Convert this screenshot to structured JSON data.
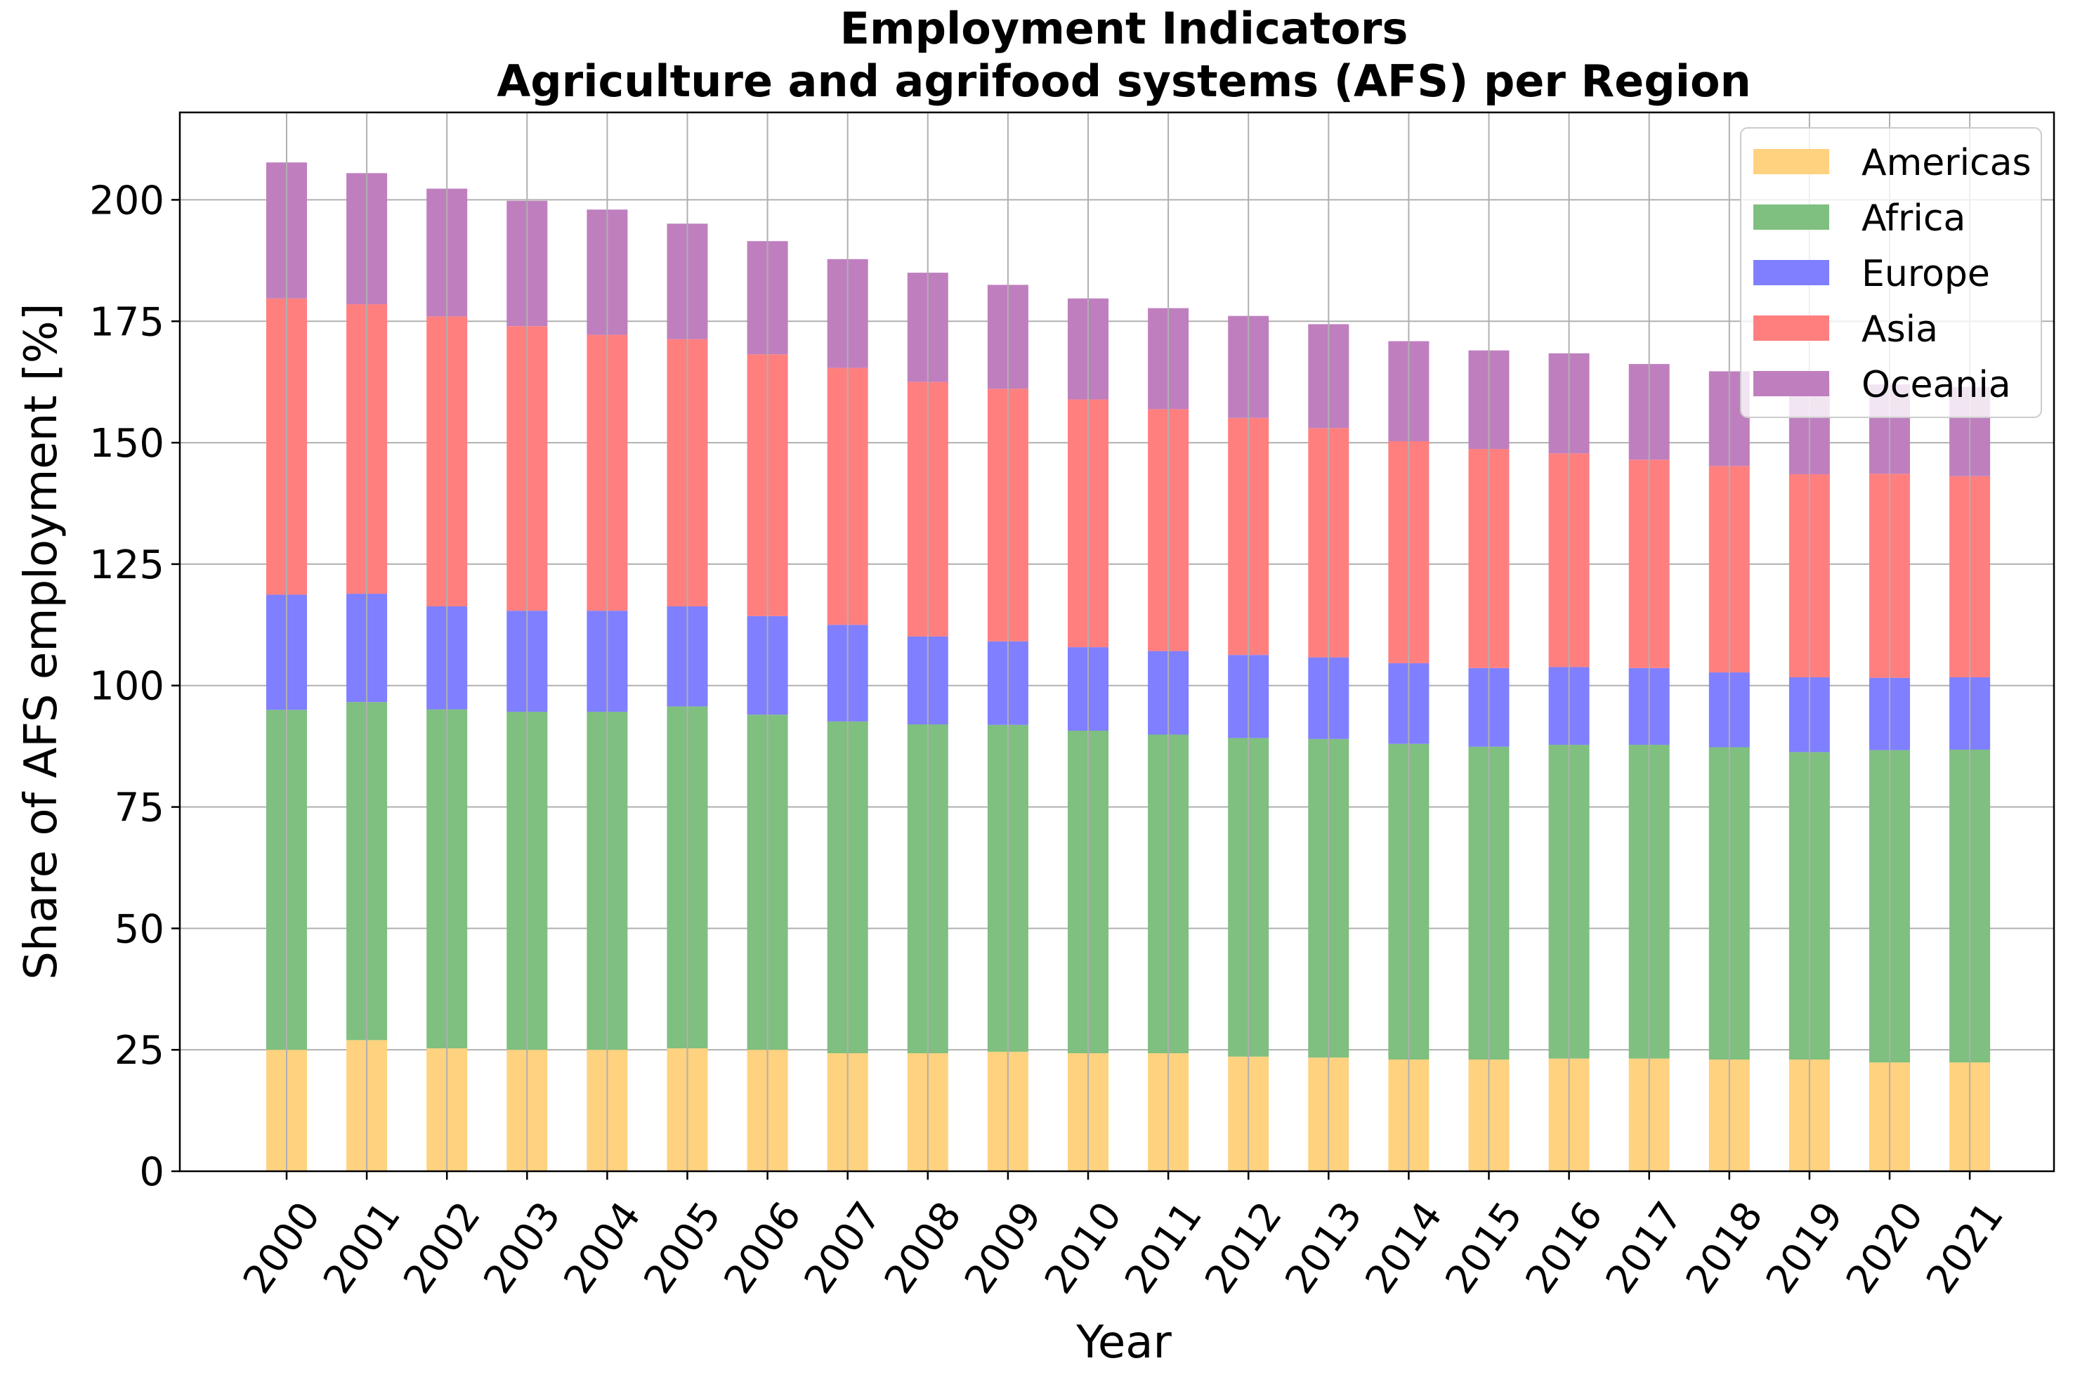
{
  "chart_data": {
    "type": "bar",
    "stacked": true,
    "title": "Employment Indicators",
    "subtitle": "Agriculture and agrifood systems (AFS) per Region",
    "xlabel": "Year",
    "ylabel": "Share of AFS employment [%]",
    "ylim": [
      0,
      218
    ],
    "yticks": [
      0,
      25,
      50,
      75,
      100,
      125,
      150,
      175,
      200
    ],
    "grid": true,
    "legend_position": "top-right",
    "categories": [
      "2000",
      "2001",
      "2002",
      "2003",
      "2004",
      "2005",
      "2006",
      "2007",
      "2008",
      "2009",
      "2010",
      "2011",
      "2012",
      "2013",
      "2014",
      "2015",
      "2016",
      "2017",
      "2018",
      "2019",
      "2020",
      "2021"
    ],
    "series": [
      {
        "name": "Americas",
        "color": "#FFD27F",
        "values": [
          25.0,
          27.0,
          25.3,
          25.0,
          25.0,
          25.3,
          25.0,
          24.3,
          24.3,
          24.6,
          24.3,
          24.3,
          23.6,
          23.4,
          23.0,
          23.0,
          23.2,
          23.2,
          23.0,
          23.0,
          22.4,
          22.4
        ]
      },
      {
        "name": "Africa",
        "color": "#7FBF7F",
        "values": [
          70.0,
          69.6,
          69.8,
          69.6,
          69.6,
          70.4,
          69.0,
          68.3,
          67.7,
          67.3,
          66.4,
          65.6,
          65.6,
          65.6,
          65.0,
          64.4,
          64.6,
          64.6,
          64.3,
          63.3,
          64.3,
          64.4
        ]
      },
      {
        "name": "Europe",
        "color": "#7F7FFF",
        "values": [
          23.7,
          22.3,
          21.2,
          20.8,
          20.8,
          20.6,
          20.3,
          19.9,
          18.1,
          17.2,
          17.2,
          17.2,
          17.1,
          16.8,
          16.6,
          16.2,
          16.0,
          15.8,
          15.4,
          15.4,
          14.9,
          14.9
        ]
      },
      {
        "name": "Asia",
        "color": "#FF7F7F",
        "values": [
          61.0,
          59.6,
          59.7,
          58.6,
          56.8,
          55.0,
          53.9,
          52.9,
          52.4,
          52.0,
          51.0,
          49.8,
          48.8,
          47.2,
          45.7,
          45.1,
          44.0,
          42.9,
          42.5,
          41.8,
          42.0,
          41.4
        ]
      },
      {
        "name": "Oceania",
        "color": "#BF7FBF",
        "values": [
          28.0,
          27.0,
          26.3,
          25.8,
          25.8,
          23.8,
          23.3,
          22.4,
          22.5,
          21.4,
          20.8,
          20.8,
          21.0,
          21.4,
          20.6,
          20.3,
          20.6,
          19.7,
          19.5,
          19.1,
          18.4,
          18.4
        ]
      }
    ]
  }
}
